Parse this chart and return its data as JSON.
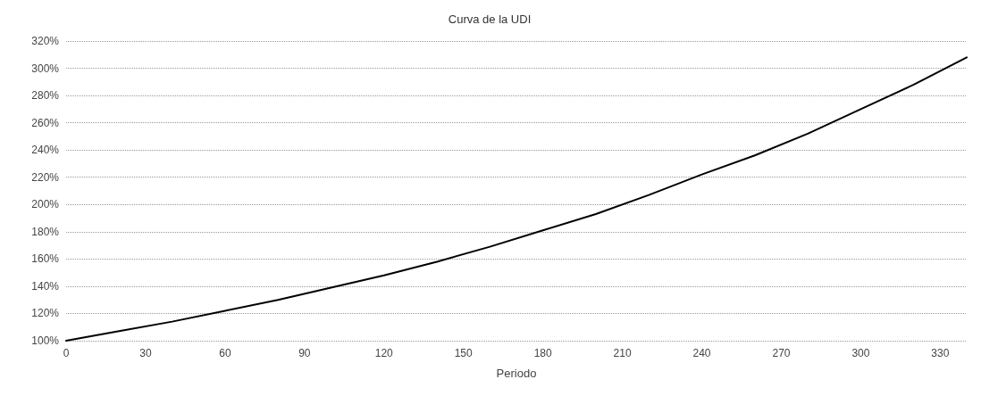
{
  "chart_data": {
    "type": "line",
    "title": "Curva de la UDI",
    "xlabel": "Periodo",
    "x": [
      0,
      20,
      40,
      60,
      80,
      100,
      120,
      140,
      160,
      180,
      200,
      220,
      240,
      260,
      280,
      300,
      320,
      340
    ],
    "series": [
      {
        "color": "#000000",
        "values": [
          100,
          107,
          114,
          122,
          130,
          139,
          148,
          158,
          169,
          181,
          193,
          207,
          222,
          236,
          252,
          270,
          288,
          308
        ]
      }
    ],
    "xlim": [
      0,
      340
    ],
    "xticks": [
      0,
      30,
      60,
      90,
      120,
      150,
      180,
      210,
      240,
      270,
      300,
      330
    ],
    "ylim": [
      100,
      320
    ],
    "yticks": [
      {
        "value": 100,
        "label": "100%"
      },
      {
        "value": 120,
        "label": "120%"
      },
      {
        "value": 140,
        "label": "140%"
      },
      {
        "value": 160,
        "label": "160%"
      },
      {
        "value": 180,
        "label": "180%"
      },
      {
        "value": 200,
        "label": "200%"
      },
      {
        "value": 220,
        "label": "220%"
      },
      {
        "value": 240,
        "label": "240%"
      },
      {
        "value": 260,
        "label": "260%"
      },
      {
        "value": 280,
        "label": "280%"
      },
      {
        "value": 300,
        "label": "300%"
      },
      {
        "value": 320,
        "label": "320%"
      }
    ],
    "grid": "y",
    "marker": "none",
    "line_style": "solid"
  }
}
